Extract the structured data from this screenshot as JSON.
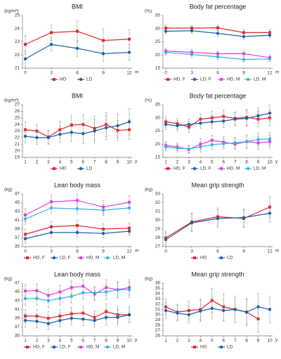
{
  "chart_data": [
    {
      "type": "line",
      "title": "BMI",
      "ylabel": "(kg/m²)",
      "xlabel": "m",
      "x": [
        0,
        3,
        6,
        9,
        12
      ],
      "xlim": [
        0,
        12
      ],
      "xticks": [
        0,
        3,
        6,
        9,
        12
      ],
      "ylim": [
        21,
        25
      ],
      "yticks": [
        21,
        22,
        23,
        24,
        25
      ],
      "series": [
        {
          "name": "HD",
          "color": "#e0262c",
          "marker": "square",
          "values": [
            22.8,
            23.7,
            23.8,
            23.1,
            23.2
          ],
          "errors": [
            0.7,
            0.6,
            0.8,
            0.9,
            0.7
          ]
        },
        {
          "name": "LD",
          "color": "#1f5fa8",
          "marker": "circle",
          "values": [
            21.7,
            22.8,
            22.5,
            22.1,
            22.2
          ],
          "errors": [
            0.6,
            0.5,
            0.6,
            0.6,
            0.6
          ]
        }
      ]
    },
    {
      "type": "line",
      "title": "Body fat percentage",
      "ylabel": "(%)",
      "xlabel": "m",
      "x": [
        0,
        3,
        6,
        9,
        12
      ],
      "xlim": [
        0,
        12
      ],
      "xticks": [
        0,
        3,
        6,
        9,
        12
      ],
      "ylim": [
        15,
        35
      ],
      "yticks": [
        15,
        20,
        25,
        30,
        35
      ],
      "series": [
        {
          "name": "HD, F",
          "color": "#e0262c",
          "marker": "square",
          "values": [
            30.2,
            30.2,
            30.3,
            28.5,
            28.5
          ],
          "errors": [
            1.2,
            1,
            1,
            1.2,
            1.2
          ]
        },
        {
          "name": "LD, F",
          "color": "#1f5fa8",
          "marker": "circle",
          "values": [
            29,
            29.2,
            28.2,
            27,
            27.5
          ],
          "errors": [
            1,
            1,
            1,
            1,
            1
          ]
        },
        {
          "name": "HD, M",
          "color": "#e040e0",
          "marker": "square",
          "values": [
            21.5,
            21,
            20.5,
            20.5,
            19
          ],
          "errors": [
            1,
            1,
            1,
            1.2,
            1
          ]
        },
        {
          "name": "LD, M",
          "color": "#3ab0e0",
          "marker": "circle",
          "values": [
            21,
            20.2,
            19.3,
            18.3,
            18.5
          ],
          "errors": [
            1,
            1,
            1,
            1,
            1
          ]
        }
      ]
    },
    {
      "type": "line",
      "title": "BMI",
      "ylabel": "(kg/m²)",
      "xlabel": "y",
      "x": [
        1,
        2,
        3,
        4,
        5,
        6,
        7,
        8,
        9,
        10
      ],
      "xlim": [
        1,
        10
      ],
      "xticks": [
        1,
        2,
        3,
        4,
        5,
        6,
        7,
        8,
        9,
        10
      ],
      "ylim": [
        19,
        27
      ],
      "yticks": [
        19,
        20,
        21,
        22,
        23,
        24,
        25,
        26,
        27
      ],
      "series": [
        {
          "name": "HD",
          "color": "#e0262c",
          "marker": "square",
          "values": [
            23.2,
            23,
            22.1,
            23.2,
            23.9,
            24,
            23.4,
            24,
            23.1,
            23.2
          ],
          "errors": [
            1.2,
            1,
            1,
            1.3,
            1.5,
            1.5,
            1.8,
            1.8,
            1.5,
            1.5
          ]
        },
        {
          "name": "LD",
          "color": "#1f5fa8",
          "marker": "circle",
          "values": [
            22.2,
            22,
            22,
            22.5,
            22.8,
            22.6,
            23,
            23.5,
            23.8,
            24.4
          ],
          "errors": [
            1,
            1,
            1,
            1.2,
            1.4,
            1.5,
            1.8,
            1.8,
            1.8,
            2
          ]
        }
      ]
    },
    {
      "type": "line",
      "title": "Body fat percentage",
      "ylabel": "(%)",
      "xlabel": "y",
      "x": [
        1,
        2,
        3,
        4,
        5,
        6,
        7,
        8,
        9,
        10
      ],
      "xlim": [
        1,
        10
      ],
      "xticks": [
        1,
        2,
        3,
        4,
        5,
        6,
        7,
        8,
        9,
        10
      ],
      "ylim": [
        15,
        35
      ],
      "yticks": [
        15,
        20,
        25,
        30,
        35
      ],
      "series": [
        {
          "name": "HD, F",
          "color": "#e0262c",
          "marker": "square",
          "values": [
            28.5,
            27.8,
            26.5,
            29.5,
            30,
            30.5,
            29.8,
            30.2,
            29.5,
            30
          ],
          "errors": [
            2,
            2,
            2,
            2,
            2.5,
            2.5,
            2.5,
            3,
            3,
            3
          ]
        },
        {
          "name": "LD, F",
          "color": "#1f5fa8",
          "marker": "circle",
          "values": [
            27.5,
            27,
            27.5,
            28,
            28.5,
            28.8,
            29.5,
            29.8,
            30.8,
            31.8
          ],
          "errors": [
            2,
            2,
            2,
            2,
            2.5,
            2.5,
            2.5,
            3,
            3,
            3
          ]
        },
        {
          "name": "HD, M",
          "color": "#e040e0",
          "marker": "square",
          "values": [
            19.5,
            19,
            18,
            20,
            21.5,
            20.8,
            20,
            21,
            20.5,
            21
          ],
          "errors": [
            1.5,
            1.5,
            1.5,
            2,
            2,
            2,
            2,
            2.5,
            2.5,
            2.5
          ]
        },
        {
          "name": "LD, M",
          "color": "#3ab0e0",
          "marker": "circle",
          "values": [
            19,
            18.5,
            18.2,
            19,
            19.8,
            20.2,
            20.5,
            21,
            21.8,
            22
          ],
          "errors": [
            1.5,
            1.5,
            1.5,
            2,
            2,
            2,
            2,
            2.5,
            2.5,
            2.5
          ]
        }
      ]
    },
    {
      "type": "line",
      "title": "Lean body mass",
      "ylabel": "(kg)",
      "xlabel": "m",
      "x": [
        0,
        3,
        6,
        9,
        12
      ],
      "xlim": [
        0,
        12
      ],
      "xticks": [
        0,
        3,
        6,
        9,
        12
      ],
      "ylim": [
        35,
        47
      ],
      "yticks": [
        35,
        37,
        39,
        41,
        43,
        45,
        47
      ],
      "series": [
        {
          "name": "HD, F",
          "color": "#e0262c",
          "marker": "square",
          "values": [
            37.8,
            39.5,
            39.8,
            39,
            39.2
          ],
          "errors": [
            1.2,
            1.2,
            1.2,
            1.2,
            1.2
          ]
        },
        {
          "name": "LD, F",
          "color": "#1f5fa8",
          "marker": "circle",
          "values": [
            36.8,
            38.2,
            38.2,
            38,
            38.5
          ],
          "errors": [
            1,
            1,
            1,
            1,
            1
          ]
        },
        {
          "name": "HD, M",
          "color": "#e040e0",
          "marker": "square",
          "values": [
            42.2,
            45.2,
            45.5,
            44,
            45.1
          ],
          "errors": [
            1.5,
            1.5,
            1.5,
            1.5,
            1.5
          ]
        },
        {
          "name": "LD, M",
          "color": "#3ab0e0",
          "marker": "circle",
          "values": [
            41.3,
            43.8,
            43.6,
            43.3,
            43.8
          ],
          "errors": [
            1.2,
            1.2,
            1.2,
            1.2,
            1.2
          ]
        }
      ]
    },
    {
      "type": "line",
      "title": "Mean grip strength",
      "ylabel": "(kg)",
      "xlabel": "m",
      "x": [
        0,
        3,
        6,
        9,
        12
      ],
      "xlim": [
        0,
        12
      ],
      "xticks": [
        0,
        3,
        6,
        9,
        12
      ],
      "ylim": [
        27,
        33
      ],
      "yticks": [
        27,
        28,
        29,
        30,
        31,
        32,
        33
      ],
      "series": [
        {
          "name": "HD",
          "color": "#e0262c",
          "marker": "square",
          "values": [
            28,
            29.8,
            30.4,
            30.2,
            31.5
          ],
          "errors": [
            0.8,
            1,
            1,
            1,
            1.2
          ]
        },
        {
          "name": "LD",
          "color": "#1f5fa8",
          "marker": "circle",
          "values": [
            27.8,
            29.7,
            30.2,
            30.3,
            30.8
          ],
          "errors": [
            0.8,
            1,
            1,
            1,
            1
          ]
        }
      ]
    },
    {
      "type": "line",
      "title": "Lean body mass",
      "ylabel": "(kg)",
      "xlabel": "y",
      "x": [
        1,
        2,
        3,
        4,
        5,
        6,
        7,
        8,
        9,
        10
      ],
      "xlim": [
        1,
        10
      ],
      "xticks": [
        1,
        2,
        3,
        4,
        5,
        6,
        7,
        8,
        9,
        10
      ],
      "ylim": [
        35,
        47
      ],
      "yticks": [
        35,
        37,
        39,
        41,
        43,
        45,
        47
      ],
      "series": [
        {
          "name": "HD, F",
          "color": "#e0262c",
          "marker": "square",
          "values": [
            39.5,
            39.5,
            39,
            39.5,
            40,
            40.2,
            39.2,
            40.5,
            39.8,
            39.8
          ],
          "errors": [
            1.5,
            1.5,
            1.5,
            1.5,
            1.5,
            1.5,
            1.5,
            1.8,
            1.8,
            1.8
          ]
        },
        {
          "name": "LD, F",
          "color": "#1f5fa8",
          "marker": "circle",
          "values": [
            38.5,
            38.3,
            37.8,
            38.5,
            39,
            38.8,
            38.5,
            39.2,
            39.2,
            39.8
          ],
          "errors": [
            1.5,
            1.5,
            1.5,
            1.5,
            1.5,
            1.5,
            1.5,
            1.8,
            1.8,
            1.8
          ]
        },
        {
          "name": "HD, M",
          "color": "#e040e0",
          "marker": "square",
          "values": [
            45.2,
            45.3,
            44.2,
            45,
            46,
            46.3,
            44.5,
            46,
            45.5,
            46
          ],
          "errors": [
            1.5,
            1.5,
            1.5,
            1.5,
            1.5,
            1.5,
            1.5,
            1.8,
            1.8,
            1.8
          ]
        },
        {
          "name": "LD, M",
          "color": "#3ab0e0",
          "marker": "circle",
          "values": [
            43.5,
            43.5,
            43,
            43.5,
            44,
            44.8,
            44.8,
            45,
            45.5,
            45.5
          ],
          "errors": [
            1.5,
            1.5,
            1.5,
            1.5,
            1.5,
            1.5,
            1.5,
            1.8,
            1.8,
            1.8
          ]
        }
      ]
    },
    {
      "type": "line",
      "title": "Mean grip strength",
      "ylabel": "(kg)",
      "xlabel": "y",
      "x": [
        1,
        2,
        3,
        4,
        5,
        6,
        7,
        8,
        9,
        10
      ],
      "xlim": [
        1,
        10
      ],
      "xticks": [
        1,
        2,
        3,
        4,
        5,
        6,
        7,
        8,
        9,
        10
      ],
      "ylim": [
        26,
        36
      ],
      "yticks": [
        26,
        27,
        28,
        29,
        30,
        31,
        32,
        33,
        34,
        35,
        36
      ],
      "series": [
        {
          "name": "HD",
          "color": "#e0262c",
          "marker": "square",
          "values": [
            31.5,
            30.5,
            30.8,
            31,
            32.7,
            31.5,
            31,
            30.5,
            29.2,
            null
          ],
          "errors": [
            1.5,
            1.5,
            1.8,
            2,
            2.3,
            2.5,
            2.5,
            2.5,
            2.5,
            null
          ]
        },
        {
          "name": "LD",
          "color": "#1f5fa8",
          "marker": "circle",
          "values": [
            30.8,
            30.3,
            30,
            30.7,
            31.2,
            30.8,
            31,
            30.5,
            31.5,
            31
          ],
          "errors": [
            1.5,
            1.5,
            1.5,
            2,
            2,
            2,
            2.5,
            2.5,
            2.5,
            2.5
          ]
        }
      ]
    }
  ]
}
